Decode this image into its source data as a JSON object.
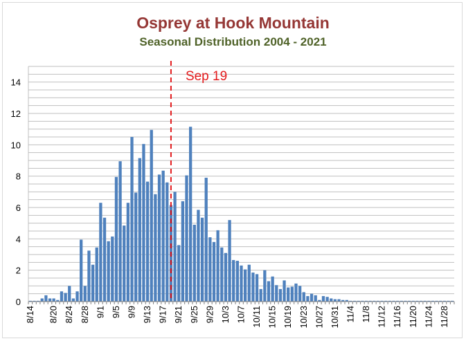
{
  "chart_data": {
    "type": "bar",
    "title": "Osprey at Hook Mountain",
    "subtitle": "Seasonal Distribution 2004 - 2021",
    "xlabel": "",
    "ylabel": "",
    "ylim": [
      0,
      15
    ],
    "yticks": [
      0,
      2,
      4,
      6,
      8,
      10,
      12,
      14
    ],
    "grid": true,
    "bar_color": "#4f81bd",
    "categories": [
      "8/14",
      "8/15",
      "8/16",
      "8/17",
      "8/18",
      "8/19",
      "8/20",
      "8/21",
      "8/22",
      "8/23",
      "8/24",
      "8/25",
      "8/26",
      "8/27",
      "8/28",
      "8/29",
      "8/30",
      "8/31",
      "9/1",
      "9/2",
      "9/3",
      "9/4",
      "9/5",
      "9/6",
      "9/7",
      "9/8",
      "9/9",
      "9/10",
      "9/11",
      "9/12",
      "9/13",
      "9/14",
      "9/15",
      "9/16",
      "9/17",
      "9/18",
      "9/19",
      "9/20",
      "9/21",
      "9/22",
      "9/23",
      "9/24",
      "9/25",
      "9/26",
      "9/27",
      "9/28",
      "9/29",
      "9/30",
      "10/1",
      "10/2",
      "10/3",
      "10/4",
      "10/5",
      "10/6",
      "10/7",
      "10/8",
      "10/9",
      "10/10",
      "10/11",
      "10/12",
      "10/13",
      "10/14",
      "10/15",
      "10/16",
      "10/17",
      "10/18",
      "10/19",
      "10/20",
      "10/21",
      "10/22",
      "10/23",
      "10/24",
      "10/25",
      "10/26",
      "10/27",
      "10/28",
      "10/29",
      "10/30",
      "10/31",
      "11/1",
      "11/2",
      "11/3",
      "11/4",
      "11/5",
      "11/6",
      "11/7",
      "11/8",
      "11/9",
      "11/10",
      "11/11",
      "11/12",
      "11/13",
      "11/14",
      "11/15",
      "11/16",
      "11/17",
      "11/18",
      "11/19",
      "11/20",
      "11/21",
      "11/22",
      "11/23",
      "11/24",
      "11/25",
      "11/26",
      "11/27",
      "11/28",
      "11/29",
      "11/30"
    ],
    "x_tick_labels": [
      "8/14",
      "8/20",
      "8/24",
      "8/28",
      "9/1",
      "9/5",
      "9/9",
      "9/13",
      "9/17",
      "9/21",
      "9/25",
      "9/29",
      "10/3",
      "10/7",
      "10/11",
      "10/15",
      "10/19",
      "10/23",
      "10/27",
      "10/31",
      "11/4",
      "11/8",
      "11/12",
      "11/16",
      "11/20",
      "11/24",
      "11/28"
    ],
    "values": [
      0.05,
      0.05,
      0.05,
      0.2,
      0.4,
      0.2,
      0.2,
      0.1,
      0.65,
      0.55,
      1.0,
      0.2,
      0.65,
      3.95,
      1.0,
      3.25,
      2.35,
      3.45,
      6.3,
      5.35,
      3.85,
      4.15,
      7.95,
      8.95,
      4.85,
      6.3,
      10.5,
      6.95,
      9.15,
      10.05,
      7.65,
      10.95,
      6.85,
      8.1,
      8.35,
      7.6,
      6.15,
      7.0,
      3.6,
      6.4,
      8.05,
      11.15,
      4.9,
      5.85,
      5.35,
      7.9,
      4.1,
      3.8,
      4.55,
      3.45,
      3.1,
      5.2,
      2.65,
      2.6,
      2.3,
      2.05,
      2.35,
      1.85,
      1.75,
      0.8,
      2.0,
      1.3,
      1.6,
      1.05,
      0.8,
      1.35,
      0.9,
      0.95,
      1.15,
      1.0,
      0.6,
      0.35,
      0.5,
      0.4,
      0.1,
      0.35,
      0.3,
      0.2,
      0.15,
      0.15,
      0.1,
      0.1,
      0.05,
      0.05,
      0.05,
      0.05,
      0.05,
      0.05,
      0.05,
      0.05,
      0.05,
      0.05,
      0.05,
      0.05,
      0.05,
      0.05,
      0.05,
      0.05,
      0.05,
      0.05,
      0.05,
      0.05,
      0.05,
      0.05,
      0.05,
      0.05,
      0.05,
      0.05,
      0.05
    ],
    "annotations": [
      {
        "text": "Sep 19",
        "x": "9/19",
        "style": "dashed-vertical-line",
        "color": "#e31a1c"
      }
    ]
  }
}
